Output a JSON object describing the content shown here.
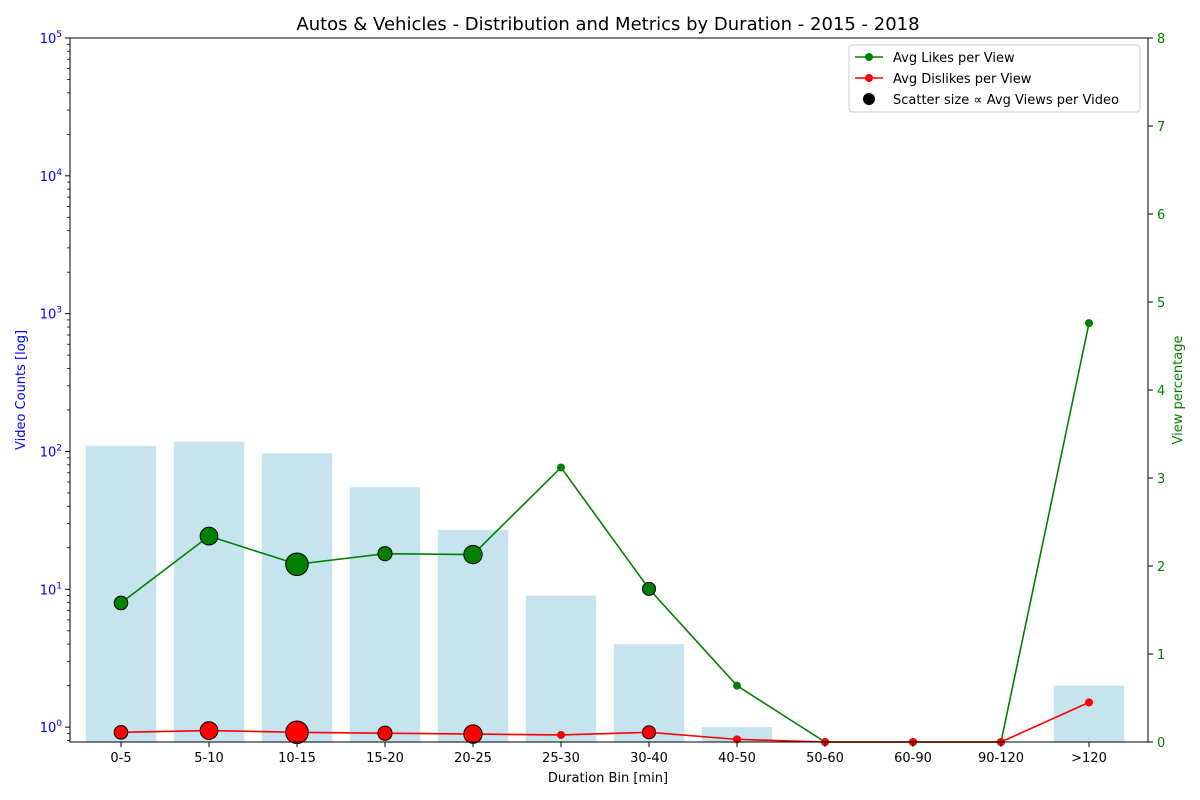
{
  "chart_data": {
    "type": "bar+line+scatter",
    "title": "Autos & Vehicles - Distribution and Metrics by Duration - 2015 - 2018",
    "xlabel": "Duration Bin [min]",
    "ylabel_left": "Video Counts [log]",
    "ylabel_right": "View percentage",
    "categories": [
      "0-5",
      "5-10",
      "10-15",
      "15-20",
      "20-25",
      "25-30",
      "30-40",
      "40-50",
      "50-60",
      "60-90",
      "90-120",
      ">120"
    ],
    "left_axis": {
      "scale": "log",
      "ylim": [
        0.78,
        100000
      ],
      "tick_exponents": [
        0,
        1,
        2,
        3,
        4,
        5
      ]
    },
    "right_axis": {
      "scale": "linear",
      "ylim": [
        0,
        8
      ],
      "ticks": [
        0,
        1,
        2,
        3,
        4,
        5,
        6,
        7,
        8
      ]
    },
    "bars": {
      "name": "Video Counts",
      "values": [
        110,
        118,
        97,
        55,
        27,
        9,
        4,
        1,
        0,
        0,
        0,
        2
      ],
      "color": "#add8e6"
    },
    "series": [
      {
        "name": "Avg Likes per View",
        "color": "#008000",
        "values": [
          1.58,
          2.34,
          2.02,
          2.14,
          2.13,
          3.12,
          1.74,
          0.64,
          0,
          0,
          0,
          4.76
        ]
      },
      {
        "name": "Avg Dislikes per View",
        "color": "#ff0000",
        "values": [
          0.11,
          0.13,
          0.11,
          0.1,
          0.09,
          0.08,
          0.11,
          0.03,
          0,
          0,
          0,
          0.45
        ]
      }
    ],
    "scatter_size": {
      "name": "Scatter size ∝ Avg Views per Video",
      "relative_values": [
        0.26,
        0.55,
        0.9,
        0.3,
        0.6,
        0,
        0.22,
        0,
        0,
        0,
        0,
        0
      ]
    },
    "legend_position": "top-right",
    "grid": false
  }
}
